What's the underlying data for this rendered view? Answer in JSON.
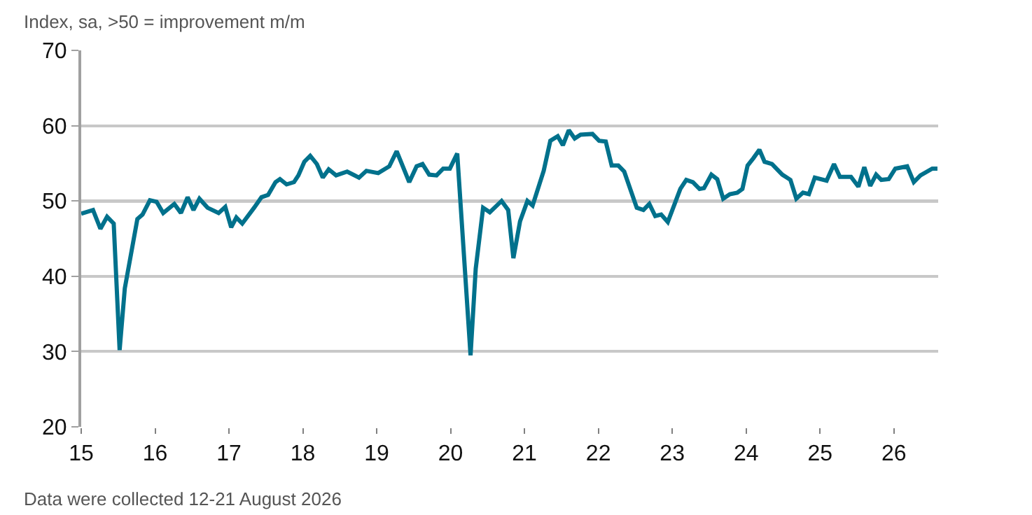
{
  "chart_data": {
    "type": "line",
    "subtitle": "Index, sa, >50 = improvement m/m",
    "annotations": [
      "Data were collected 12-21 August 2026"
    ],
    "x": [
      15.0,
      15.16,
      15.26,
      15.35,
      15.44,
      15.52,
      15.59,
      15.76,
      15.83,
      15.93,
      16.02,
      16.11,
      16.26,
      16.35,
      16.44,
      16.52,
      16.6,
      16.71,
      16.86,
      16.95,
      17.03,
      17.1,
      17.18,
      17.34,
      17.44,
      17.53,
      17.63,
      17.69,
      17.78,
      17.88,
      17.94,
      18.02,
      18.1,
      18.19,
      18.27,
      18.35,
      18.45,
      18.6,
      18.76,
      18.86,
      19.02,
      19.17,
      19.27,
      19.44,
      19.54,
      19.62,
      19.71,
      19.81,
      19.9,
      19.99,
      20.09,
      20.27,
      20.34,
      20.44,
      20.53,
      20.69,
      20.78,
      20.85,
      20.94,
      21.04,
      21.11,
      21.26,
      21.35,
      21.45,
      21.52,
      21.6,
      21.68,
      21.76,
      21.92,
      22.01,
      22.1,
      22.18,
      22.27,
      22.35,
      22.52,
      22.61,
      22.69,
      22.77,
      22.85,
      22.94,
      23.11,
      23.19,
      23.28,
      23.37,
      23.43,
      23.53,
      23.61,
      23.69,
      23.78,
      23.88,
      23.95,
      24.02,
      24.1,
      24.18,
      24.25,
      24.35,
      24.49,
      24.6,
      24.68,
      24.77,
      24.85,
      24.93,
      25.09,
      25.19,
      25.27,
      25.42,
      25.52,
      25.6,
      25.68,
      25.76,
      25.83,
      25.93,
      26.02,
      26.18,
      26.27,
      26.36,
      26.52,
      26.59
    ],
    "series": [
      {
        "color": "#00718c",
        "values": [
          48.3,
          48.8,
          46.3,
          47.9,
          47.0,
          30.2,
          38.4,
          47.6,
          48.2,
          50.1,
          49.9,
          48.4,
          49.6,
          48.4,
          50.5,
          48.8,
          50.3,
          49.1,
          48.4,
          49.2,
          46.5,
          47.8,
          47.0,
          49.1,
          50.5,
          50.8,
          52.5,
          52.9,
          52.2,
          52.5,
          53.4,
          55.2,
          56.0,
          54.9,
          53.1,
          54.2,
          53.4,
          53.9,
          53.1,
          54.0,
          53.7,
          54.6,
          56.6,
          52.5,
          54.6,
          54.9,
          53.5,
          53.4,
          54.3,
          54.3,
          56.3,
          29.5,
          41.0,
          49.1,
          48.5,
          50.0,
          48.8,
          42.4,
          47.3,
          50.0,
          49.4,
          54.0,
          58.0,
          58.6,
          57.4,
          59.4,
          58.3,
          58.8,
          58.9,
          58.0,
          57.9,
          54.7,
          54.7,
          53.9,
          49.1,
          48.8,
          49.6,
          48.0,
          48.2,
          47.2,
          51.6,
          52.8,
          52.5,
          51.6,
          51.7,
          53.5,
          52.9,
          50.3,
          50.9,
          51.1,
          51.6,
          54.7,
          55.7,
          56.8,
          55.2,
          54.9,
          53.5,
          52.8,
          50.3,
          51.1,
          50.9,
          53.1,
          52.7,
          54.9,
          53.2,
          53.2,
          51.9,
          54.5,
          52.0,
          53.5,
          52.8,
          52.9,
          54.3,
          54.6,
          52.5,
          53.4,
          54.3,
          54.3
        ]
      }
    ],
    "xlim": [
      15,
      26.6
    ],
    "xticks": [
      15,
      16,
      17,
      18,
      19,
      20,
      21,
      22,
      23,
      24,
      25,
      26
    ],
    "ylim": [
      20,
      70
    ],
    "yticks": [
      20,
      30,
      40,
      50,
      60,
      70
    ],
    "ref_lines": [
      {
        "axis": "y",
        "value": 50,
        "color": "#404040"
      }
    ],
    "grid": "y",
    "marker": "none",
    "line_style": "solid"
  }
}
